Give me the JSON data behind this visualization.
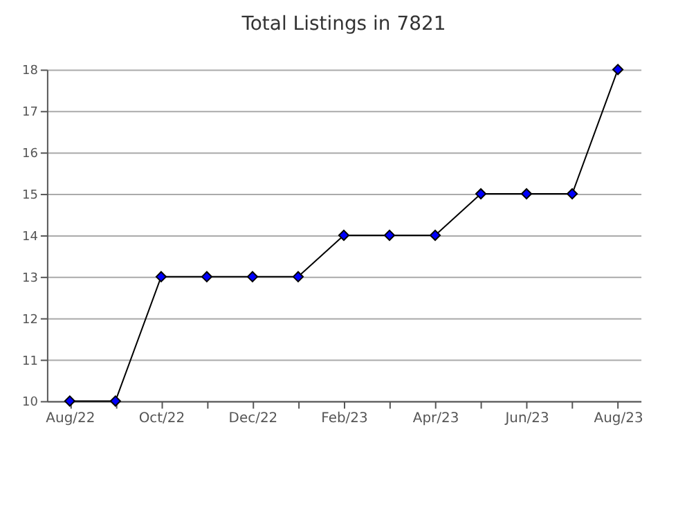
{
  "chart_data": {
    "type": "line",
    "title": "Total Listings in 7821",
    "categories": [
      "Aug/22",
      null,
      "Oct/22",
      null,
      "Dec/22",
      null,
      "Feb/23",
      null,
      "Apr/23",
      null,
      "Jun/23",
      null,
      "Aug/23"
    ],
    "series": [
      {
        "color": "#0000ff",
        "values": [
          10,
          10,
          13,
          13,
          13,
          13,
          14,
          14,
          14,
          15,
          15,
          15,
          18
        ]
      }
    ],
    "ylim": [
      10,
      18
    ],
    "yticks": [
      10,
      11,
      12,
      13,
      14,
      15,
      16,
      17,
      18
    ],
    "grid": "y",
    "marker": "diamond",
    "line_style": "solid"
  }
}
